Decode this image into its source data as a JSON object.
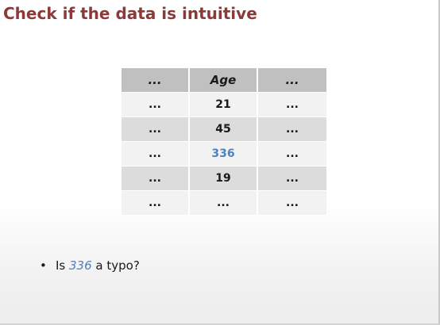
{
  "slide": {
    "title": "Check if the data is intuitive"
  },
  "table": {
    "headers": [
      "...",
      "Age",
      "..."
    ],
    "rows": [
      [
        "...",
        "21",
        "..."
      ],
      [
        "...",
        "45",
        "..."
      ],
      [
        "...",
        "336",
        "..."
      ],
      [
        "...",
        "19",
        "..."
      ],
      [
        "...",
        "...",
        "..."
      ]
    ],
    "highlight_color": "#4f81bd"
  },
  "bullets": [
    {
      "symbol": "•",
      "before": "Is ",
      "emphasis": "336",
      "after": " a typo?"
    }
  ],
  "colors": {
    "title": "#8b3a3a",
    "header_bg": "#c0c0c0",
    "row_light": "#f2f2f2",
    "row_dark": "#dcdcdc",
    "accent": "#4f81bd"
  }
}
